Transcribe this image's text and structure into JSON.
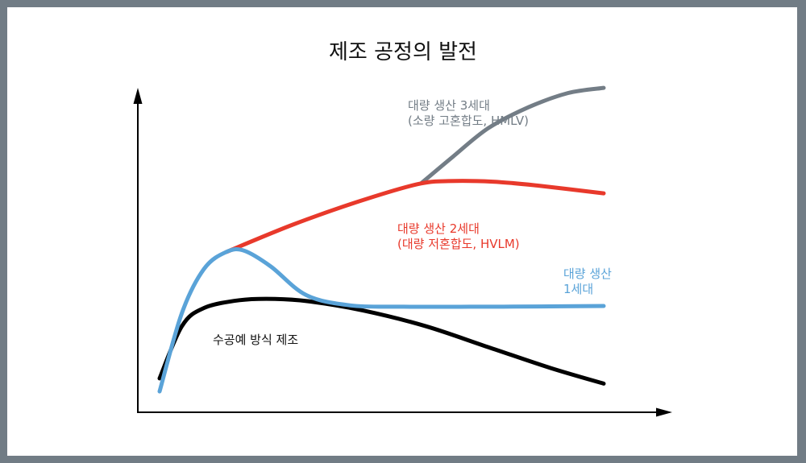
{
  "chart_data": {
    "type": "line",
    "title": "제조 공정의 발전",
    "xlabel": "",
    "ylabel": "",
    "grid": false,
    "axes": "arrows-only (no ticks, no values)",
    "note": "conceptual curves; y values are relative heights (0 = x-axis, 100 = top of plot)",
    "series": [
      {
        "key": "craft",
        "color": "#000000",
        "label_lines": [
          "수공예 방식 제조"
        ],
        "x": [
          0,
          5,
          10,
          18,
          26,
          34,
          46,
          60,
          74,
          88,
          100
        ],
        "y": [
          13,
          33,
          40,
          43,
          43.5,
          42.5,
          39,
          33,
          25,
          17,
          11
        ]
      },
      {
        "key": "gen1",
        "color": "#5aa3d8",
        "label_lines": [
          "대량 생산",
          "1세대"
        ],
        "x": [
          0,
          5,
          10,
          15,
          19,
          25,
          33,
          43,
          55,
          70,
          85,
          100
        ],
        "y": [
          8,
          38,
          55,
          61.5,
          62,
          56,
          45,
          41,
          40.5,
          40.5,
          40.6,
          40.8
        ]
      },
      {
        "key": "gen2",
        "color": "#e8392b",
        "label_lines": [
          "대량 생산 2세대",
          "(대량 저혼합도, HVLM)"
        ],
        "x": [
          15,
          30,
          45,
          58,
          65,
          75,
          85,
          100
        ],
        "y": [
          61.5,
          72,
          81,
          87.5,
          88.7,
          88.5,
          87,
          84
        ]
      },
      {
        "key": "gen3",
        "color": "#737d86",
        "label_lines": [
          "대량 생산 3세대",
          "(소량 고혼합도, HMLV)"
        ],
        "x": [
          59,
          66,
          74,
          83,
          92,
          100
        ],
        "y": [
          88,
          98,
          109,
          117,
          122.5,
          124.5
        ]
      }
    ]
  }
}
